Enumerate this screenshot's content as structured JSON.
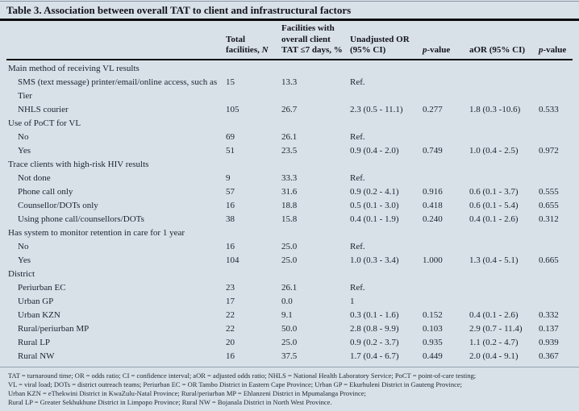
{
  "title": "Table 3. Association between overall TAT to client and infrastructural factors",
  "columns": {
    "n_pre": "Total facilities, ",
    "n_italic": "N",
    "pct": "Facilities with overall client TAT ≤7 days, %",
    "or": "Unadjusted OR (95% CI)",
    "p_italic": "p",
    "p_suffix": "-value",
    "aor": "aOR (95% CI)"
  },
  "sections": [
    {
      "header": "Main method of receiving VL results",
      "rows": [
        {
          "label": "SMS (text message) printer/email/online access, such as Tier",
          "n": "15",
          "pct": "13.3",
          "or": "Ref.",
          "p1": "",
          "aor": "",
          "p2": ""
        },
        {
          "label": "NHLS courier",
          "n": "105",
          "pct": "26.7",
          "or": "2.3 (0.5 - 11.1)",
          "p1": "0.277",
          "aor": "1.8 (0.3 -10.6)",
          "p2": "0.533"
        }
      ]
    },
    {
      "header": "Use of PoCT for VL",
      "rows": [
        {
          "label": "No",
          "n": "69",
          "pct": "26.1",
          "or": "Ref.",
          "p1": "",
          "aor": "",
          "p2": ""
        },
        {
          "label": "Yes",
          "n": "51",
          "pct": "23.5",
          "or": "0.9 (0.4 - 2.0)",
          "p1": "0.749",
          "aor": "1.0 (0.4 - 2.5)",
          "p2": "0.972"
        }
      ]
    },
    {
      "header": "Trace clients with high-risk HIV results",
      "rows": [
        {
          "label": "Not done",
          "n": "9",
          "pct": "33.3",
          "or": "Ref.",
          "p1": "",
          "aor": "",
          "p2": ""
        },
        {
          "label": "Phone call only",
          "n": "57",
          "pct": "31.6",
          "or": "0.9 (0.2 - 4.1)",
          "p1": "0.916",
          "aor": "0.6 (0.1 - 3.7)",
          "p2": "0.555"
        },
        {
          "label": "Counsellor/DOTs only",
          "n": "16",
          "pct": "18.8",
          "or": "0.5 (0.1 - 3.0)",
          "p1": "0.418",
          "aor": "0.6 (0.1 - 5.4)",
          "p2": "0.655"
        },
        {
          "label": "Using phone call/counsellors/DOTs",
          "n": "38",
          "pct": "15.8",
          "or": "0.4 (0.1 - 1.9)",
          "p1": "0.240",
          "aor": "0.4 (0.1 - 2.6)",
          "p2": "0.312"
        }
      ]
    },
    {
      "header": "Has system to monitor retention in care for 1 year",
      "rows": [
        {
          "label": "No",
          "n": "16",
          "pct": "25.0",
          "or": "Ref.",
          "p1": "",
          "aor": "",
          "p2": ""
        },
        {
          "label": "Yes",
          "n": "104",
          "pct": "25.0",
          "or": "1.0 (0.3 - 3.4)",
          "p1": "1.000",
          "aor": "1.3 (0.4 - 5.1)",
          "p2": "0.665"
        }
      ]
    },
    {
      "header": "District",
      "rows": [
        {
          "label": "Periurban EC",
          "n": "23",
          "pct": "26.1",
          "or": "Ref.",
          "p1": "",
          "aor": "",
          "p2": ""
        },
        {
          "label": "Urban GP",
          "n": "17",
          "pct": "0.0",
          "or": "1",
          "p1": "",
          "aor": "",
          "p2": ""
        },
        {
          "label": "Urban KZN",
          "n": "22",
          "pct": "9.1",
          "or": "0.3 (0.1 - 1.6)",
          "p1": "0.152",
          "aor": "0.4 (0.1 - 2.6)",
          "p2": "0.332"
        },
        {
          "label": "Rural/periurban MP",
          "n": "22",
          "pct": "50.0",
          "or": "2.8 (0.8 - 9.9)",
          "p1": "0.103",
          "aor": "2.9 (0.7 - 11.4)",
          "p2": "0.137"
        },
        {
          "label": "Rural LP",
          "n": "20",
          "pct": "25.0",
          "or": "0.9 (0.2 - 3.7)",
          "p1": "0.935",
          "aor": "1.1 (0.2 - 4.7)",
          "p2": "0.939"
        },
        {
          "label": "Rural NW",
          "n": "16",
          "pct": "37.5",
          "or": "1.7 (0.4 - 6.7)",
          "p1": "0.449",
          "aor": "2.0 (0.4 - 9.1)",
          "p2": "0.367"
        }
      ]
    }
  ],
  "footnotes": [
    "TAT = turnaround time; OR = odds ratio; CI = confidence interval; aOR = adjusted odds ratio; NHLS = National Health Laboratory Service; PoCT = point-of-care testing;",
    "VL = viral load; DOTs = district outreach teams; Periurban EC = OR Tambo District in Eastern Cape Province; Urban GP = Ekurhuleni District in Gauteng Province;",
    "Urban KZN = eThekwini District in KwaZulu-Natal Province; Rural/periurban MP = Ehlanzeni District in Mpumalanga Province;",
    "Rural LP = Greater Sekhukhune District in Limpopo Province; Rural NW = Bojanala District in North West Province."
  ],
  "colors": {
    "background": "#d8e1e8",
    "text": "#1c2230",
    "rule": "#0a0a0f"
  }
}
